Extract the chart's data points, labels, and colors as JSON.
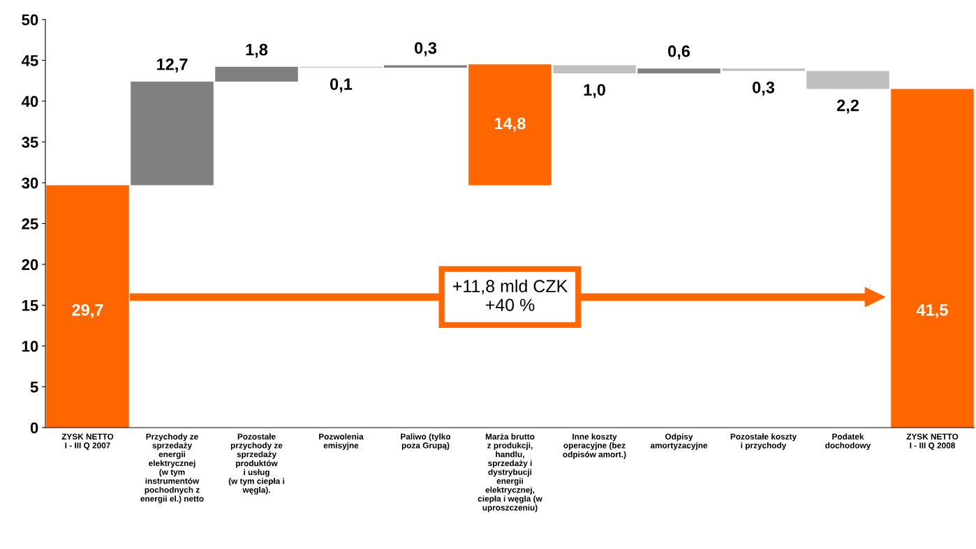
{
  "chart_data": {
    "type": "bar",
    "categories": [
      "ZYSK NETTO\nI - III Q 2007",
      "Przychody ze\nsprzedaży\nenergii\nelektrycznej\n(w tym\ninstrumentów\npochodnych z\nenergii el.) netto",
      "Pozostałe\nprzychody ze\nsprzedaży\nproduktów\ni usług\n(w tym ciepła i\nwęgla).",
      "Pozwolenia\nemisyjne",
      "Paliwo (tylko\npoza Grupą)",
      "Marża brutto\nz produkcji,\nhandlu,\nsprzedaży i\ndystrybucji\nenergii\nelektrycznej,\nciepła i węgla (w\nuproszczeniu)",
      "Inne koszty\noperacyjne (bez\nodpisów amort.)",
      "Odpisy\namortyzacyjne",
      "Pozostałe koszty\ni przychody",
      "Podatek\ndochodowy",
      "ZYSK NETTO\nI - III Q 2008"
    ],
    "values": [
      29.7,
      12.7,
      1.8,
      0.1,
      0.3,
      14.8,
      1.0,
      0.6,
      0.3,
      2.2,
      41.5
    ],
    "base": [
      0,
      29.7,
      42.4,
      44.1,
      44.1,
      29.7,
      43.4,
      43.4,
      43.7,
      41.5,
      0
    ],
    "colors": [
      "#ff6600",
      "#808080",
      "#808080",
      "#c0c0c0",
      "#808080",
      "#ff6600",
      "#c0c0c0",
      "#808080",
      "#c0c0c0",
      "#c0c0c0",
      "#ff6600"
    ],
    "value_labels": [
      "29,7",
      "12,7",
      "1,8",
      "0,1",
      "0,3",
      "14,8",
      "1,0",
      "0,6",
      "0,3",
      "2,2",
      "41,5"
    ],
    "ylim": [
      0,
      50
    ],
    "yticks": [
      0,
      5,
      10,
      15,
      20,
      25,
      30,
      35,
      40,
      45,
      50
    ],
    "grid": false,
    "annotations": [
      "+11,8 mld CZK\n+40 %"
    ]
  }
}
